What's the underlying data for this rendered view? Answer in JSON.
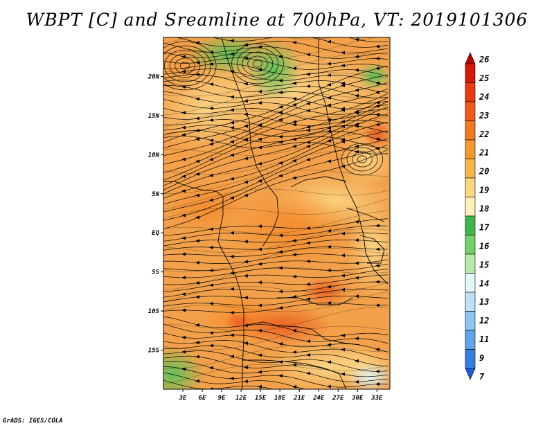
{
  "title": "WBPT [C] and Sreamline at 700hPa, VT: 2019101306",
  "credit": "GrADS: IGES/COLA",
  "map": {
    "lon_ticks": [
      "3E",
      "6E",
      "9E",
      "12E",
      "15E",
      "18E",
      "21E",
      "24E",
      "27E",
      "30E",
      "33E"
    ],
    "lat_ticks": [
      "20N",
      "15N",
      "10N",
      "5N",
      "EQ",
      "5S",
      "10S",
      "15S"
    ],
    "lon_values": [
      3,
      6,
      9,
      12,
      15,
      18,
      21,
      24,
      27,
      30,
      33
    ],
    "lat_values": [
      20,
      15,
      10,
      5,
      0,
      -5,
      -10,
      -15
    ],
    "lon_range": [
      0,
      35
    ],
    "lat_range": [
      -20,
      25
    ],
    "base_color": "#f2a14a"
  },
  "colorbar": {
    "labels": [
      "26",
      "25",
      "24",
      "23",
      "22",
      "21",
      "20",
      "19",
      "18",
      "17",
      "16",
      "15",
      "14",
      "13",
      "12",
      "11",
      "9",
      "7"
    ],
    "colors": [
      "#b80000",
      "#d71a05",
      "#ea3a10",
      "#f25b18",
      "#f27a1e",
      "#f3992b",
      "#f6b64c",
      "#fad680",
      "#fcf2b8",
      "#3fb64a",
      "#73d16a",
      "#b2eca8",
      "#e4f7f8",
      "#bde2f7",
      "#8cc6f2",
      "#5ba6ea",
      "#357fe0",
      "#1a5cd6"
    ]
  }
}
